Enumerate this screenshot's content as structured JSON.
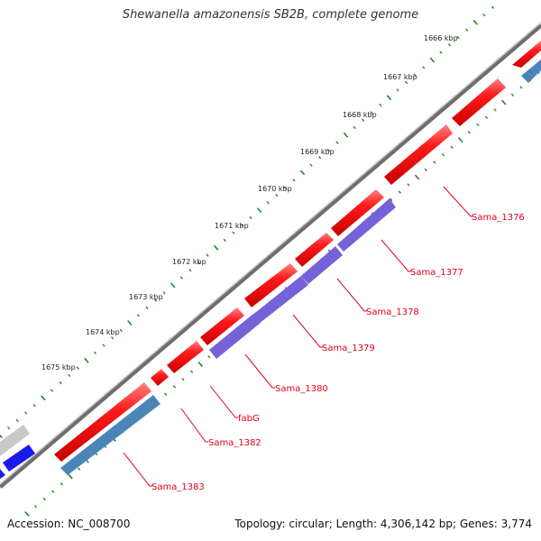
{
  "title": "Shewanella amazonensis SB2B, complete genome",
  "footer": {
    "accession": "Accession: NC_008700",
    "summary": "Topology: circular; Length: 4,306,142 bp; Genes: 3,774"
  },
  "kbp_labels": [
    "1666 kbp",
    "1667 kbp",
    "1668 kbp",
    "1669 kbp",
    "1670 kbp",
    "1671 kbp",
    "1672 kbp",
    "1673 kbp",
    "1674 kbp",
    "1675 kbp"
  ],
  "gene_labels": [
    "Sama_1376",
    "Sama_1377",
    "Sama_1378",
    "Sama_1379",
    "Sama_1380",
    "fabG",
    "Sama_1382",
    "Sama_1383"
  ],
  "colors": {
    "cds": "#ee1111",
    "cds_light": "#ff6f6f",
    "blast_purple": "#7462d8",
    "blast_blue": "#4b85b8",
    "tick": "#1d8a1d",
    "backbone": "#777777",
    "label": "#e0001b"
  }
}
